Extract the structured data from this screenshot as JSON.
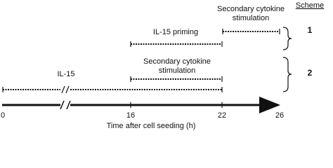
{
  "header": {
    "title": "Scheme"
  },
  "schemes": [
    {
      "number": "1",
      "steps": [
        {
          "label": "IL-15 priming"
        },
        {
          "label_lines": [
            "Secondary cytokine",
            "stimulation"
          ]
        }
      ]
    },
    {
      "number": "2",
      "steps": [
        {
          "label": "IL-15"
        },
        {
          "label_lines": [
            "Secondary cytokine",
            "stimulation"
          ]
        }
      ]
    }
  ],
  "axis": {
    "ticks": [
      "0",
      "16",
      "22",
      "26"
    ],
    "title": "Time after cell seeding (h)"
  }
}
